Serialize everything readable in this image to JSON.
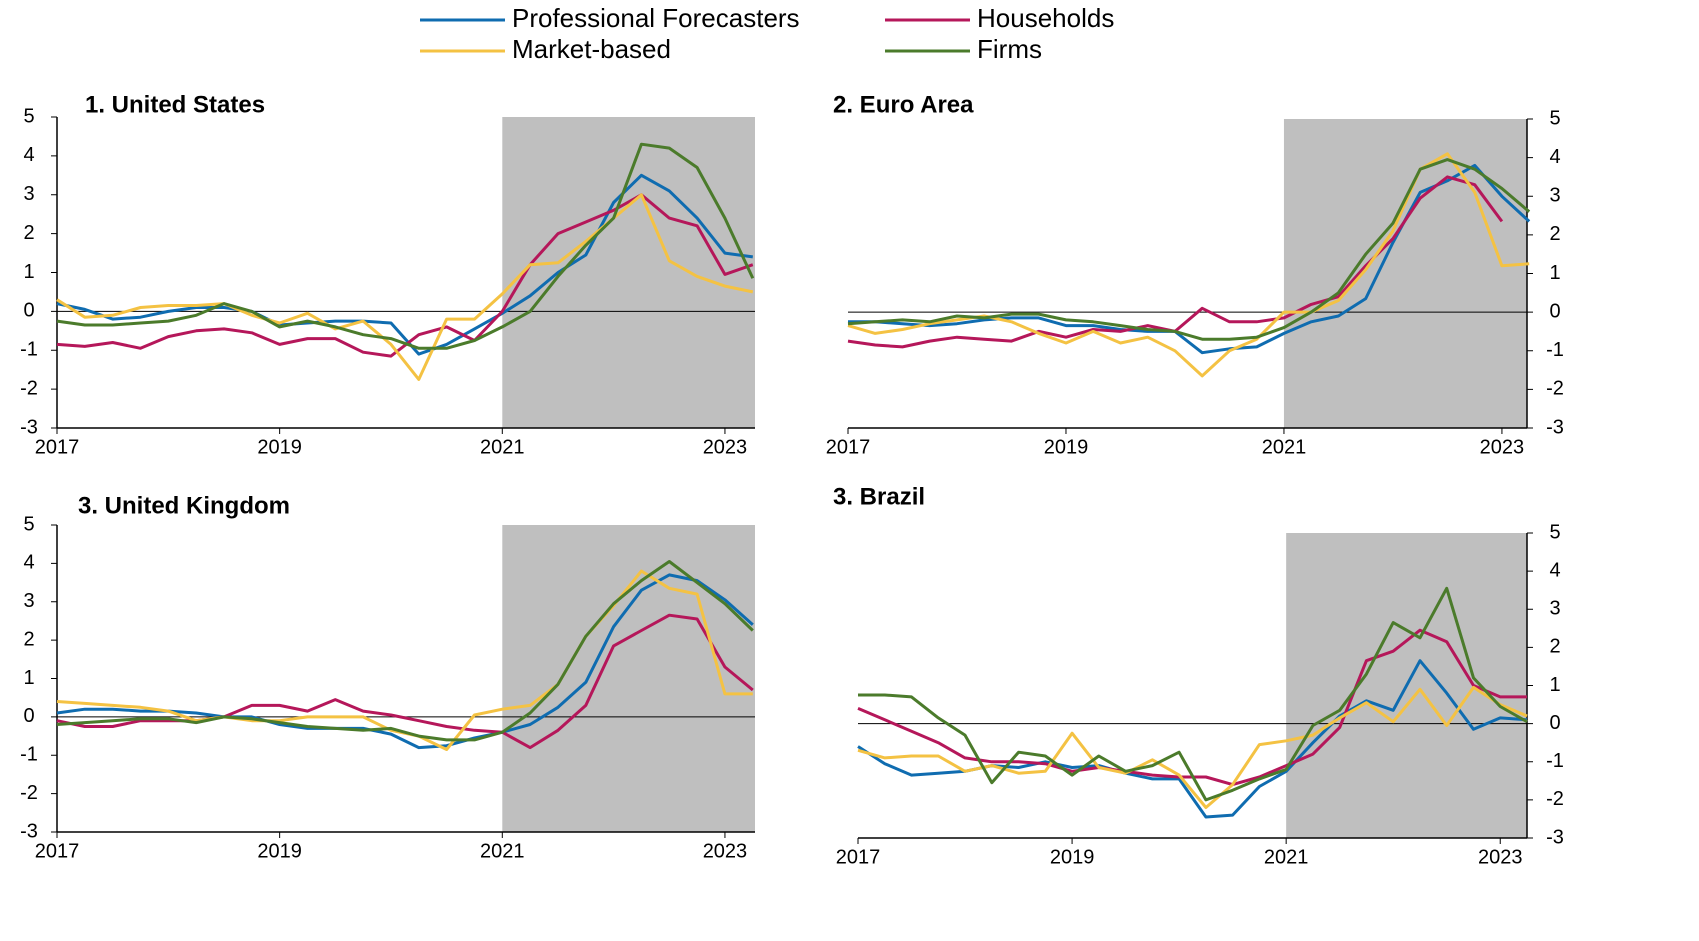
{
  "chart_data": [
    {
      "type": "line",
      "title": "1. United States",
      "y_axis": "left",
      "shade_from": 2021,
      "x": [
        2017,
        2017.25,
        2017.5,
        2017.75,
        2018,
        2018.25,
        2018.5,
        2018.75,
        2019,
        2019.25,
        2019.5,
        2019.75,
        2020,
        2020.25,
        2020.5,
        2020.75,
        2021,
        2021.25,
        2021.5,
        2021.75,
        2022,
        2022.25,
        2022.5,
        2022.75,
        2023,
        2023.25
      ],
      "xlim": [
        2017,
        2023.27
      ],
      "xticks": [
        2017,
        2019,
        2021,
        2023
      ],
      "ylim": [
        -3,
        5
      ],
      "yticks": [
        -3,
        -2,
        -1,
        0,
        1,
        2,
        3,
        4,
        5
      ],
      "series": [
        {
          "name": "Professional Forecasters",
          "color": "#0f6cb0",
          "values": [
            0.2,
            0.05,
            -0.2,
            -0.15,
            0,
            0.1,
            0.1,
            0,
            -0.35,
            -0.3,
            -0.25,
            -0.25,
            -0.3,
            -1.1,
            -0.85,
            -0.45,
            -0.05,
            0.4,
            1.0,
            1.45,
            2.8,
            3.5,
            3.1,
            2.4,
            1.5,
            1.4
          ]
        },
        {
          "name": "Households",
          "color": "#b5175a",
          "values": [
            -0.85,
            -0.9,
            -0.8,
            -0.95,
            -0.65,
            -0.5,
            -0.45,
            -0.55,
            -0.85,
            -0.7,
            -0.7,
            -1.05,
            -1.15,
            -0.6,
            -0.4,
            -0.75,
            0,
            1.2,
            2.0,
            2.3,
            2.6,
            3.0,
            2.4,
            2.2,
            0.95,
            1.2
          ]
        },
        {
          "name": "Market-based",
          "color": "#f4c243",
          "values": [
            0.3,
            -0.15,
            -0.1,
            0.1,
            0.15,
            0.15,
            0.2,
            -0.1,
            -0.3,
            -0.05,
            -0.45,
            -0.25,
            -0.85,
            -1.75,
            -0.2,
            -0.2,
            0.45,
            1.2,
            1.25,
            1.8,
            2.4,
            3.0,
            1.3,
            0.9,
            0.65,
            0.5
          ]
        },
        {
          "name": "Firms",
          "color": "#4b7b2b",
          "values": [
            -0.25,
            -0.35,
            -0.35,
            -0.3,
            -0.25,
            -0.1,
            0.2,
            0,
            -0.4,
            -0.25,
            -0.4,
            -0.6,
            -0.7,
            -0.95,
            -0.95,
            -0.75,
            -0.4,
            0,
            0.9,
            1.7,
            2.4,
            4.3,
            4.2,
            3.7,
            2.4,
            0.85
          ]
        }
      ]
    },
    {
      "type": "line",
      "title": "2. Euro Area",
      "y_axis": "right",
      "shade_from": 2021,
      "x": [
        2017,
        2017.25,
        2017.5,
        2017.75,
        2018,
        2018.25,
        2018.5,
        2018.75,
        2019,
        2019.25,
        2019.5,
        2019.75,
        2020,
        2020.25,
        2020.5,
        2020.75,
        2021,
        2021.25,
        2021.5,
        2021.75,
        2022,
        2022.25,
        2022.5,
        2022.75,
        2023,
        2023.25
      ],
      "xlim": [
        2017,
        2023.23
      ],
      "xticks": [
        2017,
        2019,
        2021,
        2023
      ],
      "ylim": [
        -3,
        5
      ],
      "yticks": [
        -3,
        -2,
        -1,
        0,
        1,
        2,
        3,
        4,
        5
      ],
      "series": [
        {
          "color": "#0f6cb0",
          "values": [
            -0.25,
            -0.25,
            -0.3,
            -0.35,
            -0.3,
            -0.2,
            -0.15,
            -0.15,
            -0.35,
            -0.35,
            -0.45,
            -0.5,
            -0.5,
            -1.05,
            -0.95,
            -0.9,
            -0.55,
            -0.25,
            -0.1,
            0.35,
            1.8,
            3.1,
            3.4,
            3.8,
            3.0,
            2.35
          ]
        },
        {
          "color": "#b5175a",
          "values": [
            -0.75,
            -0.85,
            -0.9,
            -0.75,
            -0.65,
            -0.7,
            -0.75,
            -0.5,
            -0.65,
            -0.45,
            -0.5,
            -0.35,
            -0.5,
            0.1,
            -0.25,
            -0.25,
            -0.15,
            0.2,
            0.4,
            1.2,
            1.9,
            2.95,
            3.5,
            3.3,
            2.35,
            null
          ]
        },
        {
          "color": "#f4c243",
          "values": [
            -0.35,
            -0.55,
            -0.45,
            -0.3,
            -0.2,
            -0.1,
            -0.25,
            -0.55,
            -0.8,
            -0.5,
            -0.8,
            -0.65,
            -1.0,
            -1.65,
            -1.0,
            -0.7,
            0,
            0,
            0.3,
            1.1,
            2.1,
            3.7,
            4.1,
            3.1,
            1.2,
            1.25
          ]
        },
        {
          "color": "#4b7b2b",
          "values": [
            -0.3,
            -0.25,
            -0.2,
            -0.25,
            -0.1,
            -0.15,
            -0.05,
            -0.05,
            -0.2,
            -0.25,
            -0.35,
            -0.45,
            -0.5,
            -0.7,
            -0.7,
            -0.65,
            -0.4,
            0,
            0.5,
            1.5,
            2.3,
            3.7,
            3.95,
            3.7,
            3.2,
            2.6
          ]
        }
      ]
    },
    {
      "type": "line",
      "title": "3. United Kingdom",
      "y_axis": "left",
      "shade_from": 2021,
      "x": [
        2017,
        2017.25,
        2017.5,
        2017.75,
        2018,
        2018.25,
        2018.5,
        2018.75,
        2019,
        2019.25,
        2019.5,
        2019.75,
        2020,
        2020.25,
        2020.5,
        2020.75,
        2021,
        2021.25,
        2021.5,
        2021.75,
        2022,
        2022.25,
        2022.5,
        2022.75,
        2023,
        2023.25
      ],
      "xlim": [
        2017,
        2023.27
      ],
      "xticks": [
        2017,
        2019,
        2021,
        2023
      ],
      "ylim": [
        -3,
        5
      ],
      "yticks": [
        -3,
        -2,
        -1,
        0,
        1,
        2,
        3,
        4,
        5
      ],
      "series": [
        {
          "color": "#0f6cb0",
          "values": [
            0.1,
            0.2,
            0.2,
            0.15,
            0.15,
            0.1,
            0,
            0,
            -0.2,
            -0.3,
            -0.3,
            -0.3,
            -0.45,
            -0.8,
            -0.75,
            -0.55,
            -0.4,
            -0.2,
            0.25,
            0.9,
            2.35,
            3.3,
            3.7,
            3.55,
            3.05,
            2.4
          ]
        },
        {
          "color": "#b5175a",
          "values": [
            -0.1,
            -0.25,
            -0.25,
            -0.1,
            -0.1,
            -0.1,
            0,
            0.3,
            0.3,
            0.15,
            0.45,
            0.15,
            0.05,
            -0.1,
            -0.25,
            -0.35,
            -0.4,
            -0.8,
            -0.35,
            0.3,
            1.85,
            2.25,
            2.65,
            2.55,
            1.3,
            0.7
          ]
        },
        {
          "color": "#f4c243",
          "values": [
            0.4,
            0.35,
            0.3,
            0.25,
            0.15,
            -0.1,
            0,
            -0.1,
            -0.1,
            0,
            0,
            0,
            -0.35,
            -0.5,
            -0.85,
            0.05,
            0.2,
            0.3,
            0.85,
            2.1,
            2.9,
            3.8,
            3.35,
            3.2,
            0.6,
            0.6
          ]
        },
        {
          "color": "#4b7b2b",
          "values": [
            -0.2,
            -0.15,
            -0.1,
            -0.05,
            -0.05,
            -0.15,
            0,
            -0.05,
            -0.15,
            -0.25,
            -0.3,
            -0.35,
            -0.3,
            -0.5,
            -0.6,
            -0.6,
            -0.4,
            0.1,
            0.85,
            2.1,
            2.95,
            3.55,
            4.05,
            3.5,
            2.95,
            2.25
          ]
        }
      ]
    },
    {
      "type": "line",
      "title": "3. Brazil",
      "y_axis": "right",
      "shade_from": 2021,
      "x": [
        2017,
        2017.25,
        2017.5,
        2017.75,
        2018,
        2018.25,
        2018.5,
        2018.75,
        2019,
        2019.25,
        2019.5,
        2019.75,
        2020,
        2020.25,
        2020.5,
        2020.75,
        2021,
        2021.25,
        2021.5,
        2021.75,
        2022,
        2022.25,
        2022.5,
        2022.75,
        2023,
        2023.25
      ],
      "xlim": [
        2017,
        2023.25
      ],
      "xticks": [
        2017,
        2019,
        2021,
        2023
      ],
      "ylim": [
        -3,
        5
      ],
      "yticks": [
        -3,
        -2,
        -1,
        0,
        1,
        2,
        3,
        4,
        5
      ],
      "series": [
        {
          "color": "#0f6cb0",
          "values": [
            -0.6,
            -1.05,
            -1.35,
            -1.3,
            -1.25,
            -1.1,
            -1.15,
            -1.0,
            -1.15,
            -1.1,
            -1.3,
            -1.45,
            -1.45,
            -2.45,
            -2.4,
            -1.65,
            -1.25,
            -0.5,
            0.2,
            0.6,
            0.35,
            1.65,
            0.8,
            -0.15,
            0.15,
            0.1
          ]
        },
        {
          "color": "#b5175a",
          "values": [
            0.4,
            0.1,
            -0.2,
            -0.5,
            -0.9,
            -1.0,
            -1.0,
            -1.05,
            -1.25,
            -1.15,
            -1.25,
            -1.35,
            -1.4,
            -1.4,
            -1.6,
            -1.4,
            -1.1,
            -0.8,
            -0.1,
            1.65,
            1.9,
            2.45,
            2.15,
            1.0,
            0.7,
            0.7
          ]
        },
        {
          "color": "#f4c243",
          "values": [
            -0.7,
            -0.9,
            -0.85,
            -0.85,
            -1.25,
            -1.1,
            -1.3,
            -1.25,
            -0.25,
            -1.15,
            -1.3,
            -0.95,
            -1.35,
            -2.2,
            -1.6,
            -0.55,
            -0.45,
            -0.3,
            0.15,
            0.55,
            0.05,
            0.9,
            -0.05,
            0.95,
            0.5,
            0.2
          ]
        },
        {
          "color": "#4b7b2b",
          "values": [
            0.75,
            0.75,
            0.7,
            0.15,
            -0.3,
            -1.55,
            -0.75,
            -0.85,
            -1.35,
            -0.85,
            -1.25,
            -1.1,
            -0.75,
            -2.0,
            -1.75,
            -1.45,
            -1.2,
            -0.05,
            0.35,
            1.3,
            2.65,
            2.25,
            3.55,
            1.2,
            0.45,
            0.05
          ]
        }
      ]
    }
  ]
}
